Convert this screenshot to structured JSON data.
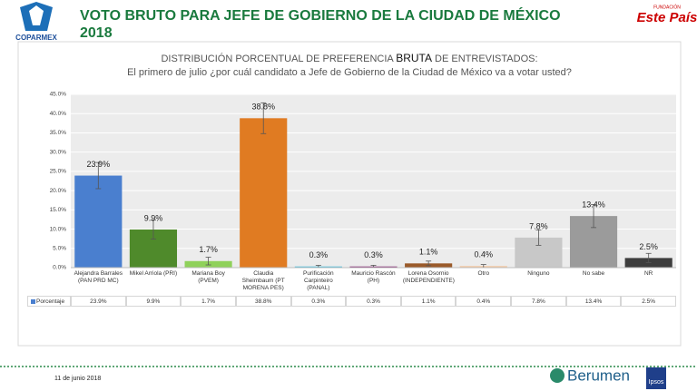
{
  "header": {
    "title": "VOTO BRUTO PARA JEFE DE GOBIERNO DE LA CIUDAD DE MÉXICO 2018",
    "left_logo": "COPARMEX",
    "right_logo_top": "FUNDACIÓN",
    "right_logo": "Este País"
  },
  "footer": {
    "date": "11 de junio 2018",
    "logo_left": "Berumen",
    "logo_right": "Ipsos"
  },
  "chart_data": {
    "type": "bar",
    "subtitle_parts": [
      "DISTRIBUCIÓN PORCENTUAL DE PREFERENCIA",
      "BRUTA",
      "DE ENTREVISTADOS:"
    ],
    "question": "El primero de julio ¿por cuál candidato a Jefe de Gobierno de la Ciudad de México va a votar usted?",
    "categories": [
      "Alejandra Barrales (PAN PRD MC)",
      "Mikel Arriola (PRI)",
      "Mariana Boy (PVEM)",
      "Claudia Sheimbaum (PT MORENA PES)",
      "Purificación Carpinteiro (PANAL)",
      "Mauricio Rascón (PH)",
      "Lorena Osornio (INDEPENDIENTE)",
      "Otro",
      "Ninguno",
      "No sabe",
      "NR"
    ],
    "series": [
      {
        "name": "Porcentaje",
        "color": "#4a7fcf",
        "values": [
          23.9,
          9.9,
          1.7,
          38.8,
          0.3,
          0.3,
          1.1,
          0.4,
          7.8,
          13.4,
          2.5
        ],
        "value_labels": [
          "23.9%",
          "9.9%",
          "1.7%",
          "38.8%",
          "0.3%",
          "0.3%",
          "1.1%",
          "0.4%",
          "7.8%",
          "13.4%",
          "2.5%"
        ],
        "errors": [
          3.4,
          2.5,
          1.0,
          4.0,
          0.3,
          0.3,
          0.6,
          0.4,
          2.0,
          3.0,
          1.2
        ],
        "bar_colors": [
          "#4a7fcf",
          "#4f8a2b",
          "#8fd15a",
          "#e07b22",
          "#4ec3e0",
          "#8a2f7a",
          "#9a5a2a",
          "#f4c7a0",
          "#c8c8c8",
          "#9b9b9b",
          "#3d3d3d"
        ]
      }
    ],
    "ylim": [
      0,
      45
    ],
    "yticks": [
      {
        "value": 0,
        "label": "0.0%"
      },
      {
        "value": 5,
        "label": "5.0%"
      },
      {
        "value": 10,
        "label": "10.0%"
      },
      {
        "value": 15,
        "label": "15.0%"
      },
      {
        "value": 20,
        "label": "20.0%"
      },
      {
        "value": 25,
        "label": "25.0%"
      },
      {
        "value": 30,
        "label": "30.0%"
      },
      {
        "value": 35,
        "label": "35.0%"
      },
      {
        "value": 40,
        "label": "40.0%"
      },
      {
        "value": 45,
        "label": "45.0%"
      }
    ],
    "grid": true
  }
}
